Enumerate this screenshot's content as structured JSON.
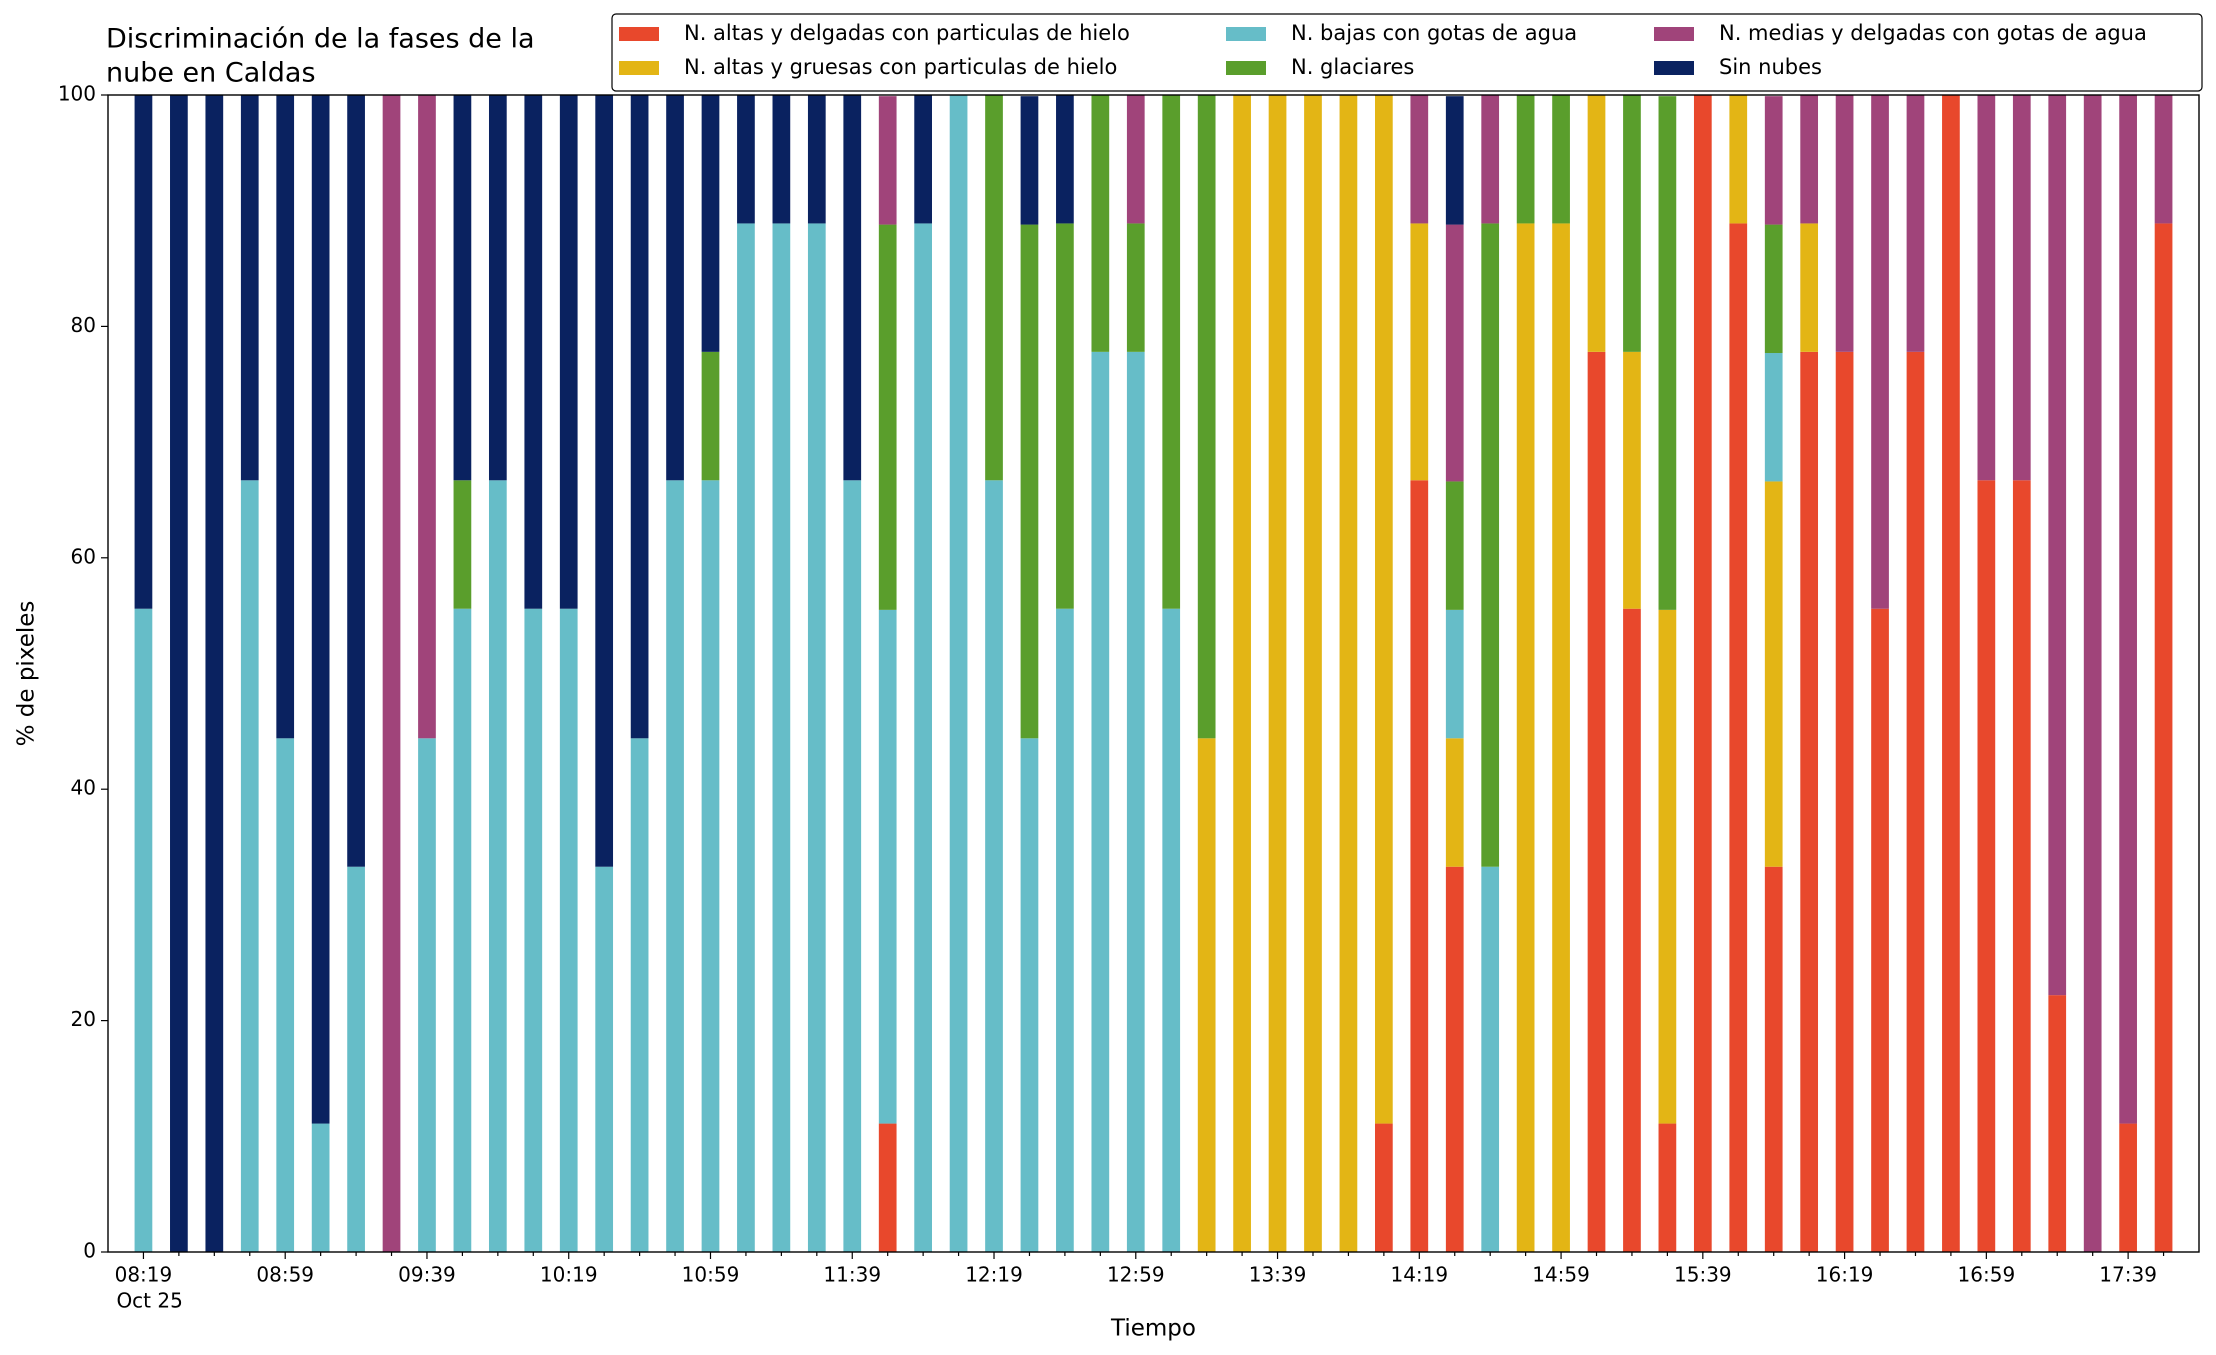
{
  "chart_data": {
    "type": "bar",
    "stacked": true,
    "title": [
      "Discriminación de la fases de la",
      "nube en Caldas"
    ],
    "xlabel": "Tiempo",
    "ylabel": "% de pixeles",
    "date_label": "Oct 25",
    "categories": [
      "08:19",
      null,
      null,
      null,
      "08:59",
      null,
      null,
      null,
      "09:39",
      null,
      null,
      null,
      "10:19",
      null,
      null,
      null,
      "10:59",
      null,
      null,
      null,
      "11:39",
      null,
      null,
      null,
      "12:19",
      null,
      null,
      null,
      "12:59",
      null,
      null,
      null,
      "13:39",
      null,
      null,
      null,
      "14:19",
      null,
      null,
      null,
      "14:59",
      null,
      null,
      null,
      "15:39",
      null,
      null,
      null,
      "16:19",
      null,
      null,
      null,
      "16:59",
      null,
      null,
      null,
      "17:39",
      null
    ],
    "ylim": [
      0,
      100
    ],
    "yticks": [
      0,
      20,
      40,
      60,
      80,
      100
    ],
    "legend": "upper right",
    "series": [
      {
        "name": "N. altas y delgadas con particulas de hielo",
        "color": "#e8482c",
        "values": [
          0,
          0,
          0,
          0,
          0,
          0,
          0,
          0,
          0,
          0,
          0,
          0,
          0,
          0,
          0,
          0,
          0,
          0,
          0,
          0,
          0,
          11.1,
          0,
          0,
          0,
          0,
          0,
          0,
          0,
          0,
          0,
          0,
          0,
          0,
          0,
          11.1,
          66.7,
          33.3,
          0,
          0,
          0,
          77.8,
          55.6,
          11.1,
          100,
          88.9,
          33.3,
          77.8,
          77.8,
          55.6,
          77.8,
          100,
          66.7,
          66.7,
          22.2,
          0,
          11.1,
          88.9
        ]
      },
      {
        "name": "N. altas y gruesas con particulas de hielo",
        "color": "#e3b515",
        "values": [
          0,
          0,
          0,
          0,
          0,
          0,
          0,
          0,
          0,
          0,
          0,
          0,
          0,
          0,
          0,
          0,
          0,
          0,
          0,
          0,
          0,
          0,
          0,
          0,
          0,
          0,
          0,
          0,
          0,
          0,
          44.4,
          100,
          100,
          100,
          100,
          88.9,
          22.2,
          11.1,
          0,
          88.9,
          88.9,
          22.2,
          22.2,
          44.4,
          0,
          11.1,
          33.3,
          11.1,
          0,
          0,
          0,
          0,
          0,
          0,
          0,
          0,
          0,
          0
        ]
      },
      {
        "name": "N. bajas con gotas de agua",
        "color": "#66bdc8",
        "values": [
          55.6,
          0,
          0,
          66.7,
          44.4,
          11.1,
          33.3,
          0,
          44.4,
          55.6,
          66.7,
          55.6,
          55.6,
          33.3,
          44.4,
          66.7,
          66.7,
          88.9,
          88.9,
          88.9,
          66.7,
          44.4,
          88.9,
          100,
          66.7,
          44.4,
          55.6,
          77.8,
          77.8,
          55.6,
          0,
          0,
          0,
          0,
          0,
          0,
          0,
          11.1,
          33.3,
          0,
          0,
          0,
          0,
          0,
          0,
          0,
          11.1,
          0,
          0,
          0,
          0,
          0,
          0,
          0,
          0,
          0,
          0,
          0
        ]
      },
      {
        "name": "N. glaciares",
        "color": "#5a9e2c",
        "values": [
          0,
          0,
          0,
          0,
          0,
          0,
          0,
          0,
          0,
          11.1,
          0,
          0,
          0,
          0,
          0,
          0,
          11.1,
          0,
          0,
          0,
          0,
          33.3,
          0,
          0,
          33.3,
          44.4,
          33.3,
          22.2,
          11.1,
          44.4,
          55.6,
          0,
          0,
          0,
          0,
          0,
          0,
          11.1,
          55.6,
          11.1,
          11.1,
          0,
          22.2,
          44.4,
          0,
          0,
          11.1,
          0,
          0,
          0,
          0,
          0,
          0,
          0,
          0,
          0,
          0,
          0
        ]
      },
      {
        "name": "N. medias y delgadas con gotas de agua",
        "color": "#a0447a",
        "values": [
          0,
          0,
          0,
          0,
          0,
          0,
          0,
          100,
          55.6,
          0,
          0,
          0,
          0,
          0,
          0,
          0,
          0,
          0,
          0,
          0,
          0,
          11.1,
          0,
          0,
          0,
          0,
          0,
          0,
          11.1,
          0,
          0,
          0,
          0,
          0,
          0,
          0,
          11.1,
          22.2,
          11.1,
          0,
          0,
          0,
          0,
          0,
          0,
          0,
          11.1,
          11.1,
          22.2,
          44.4,
          22.2,
          0,
          33.3,
          33.3,
          77.8,
          100,
          88.9,
          11.1
        ]
      },
      {
        "name": "Sin nubes",
        "color": "#0a2260",
        "values": [
          44.4,
          100,
          100,
          33.3,
          55.6,
          88.9,
          66.7,
          0,
          0,
          33.3,
          33.3,
          44.4,
          44.4,
          66.7,
          55.6,
          33.3,
          22.2,
          11.1,
          11.1,
          11.1,
          33.3,
          0,
          11.1,
          0,
          0,
          11.1,
          11.1,
          0,
          0,
          0,
          0,
          0,
          0,
          0,
          0,
          0,
          0,
          11.1,
          0,
          0,
          0,
          0,
          0,
          0,
          0,
          0,
          0,
          0,
          0,
          0,
          0,
          0,
          0,
          0,
          0,
          0,
          0,
          0
        ]
      }
    ]
  }
}
